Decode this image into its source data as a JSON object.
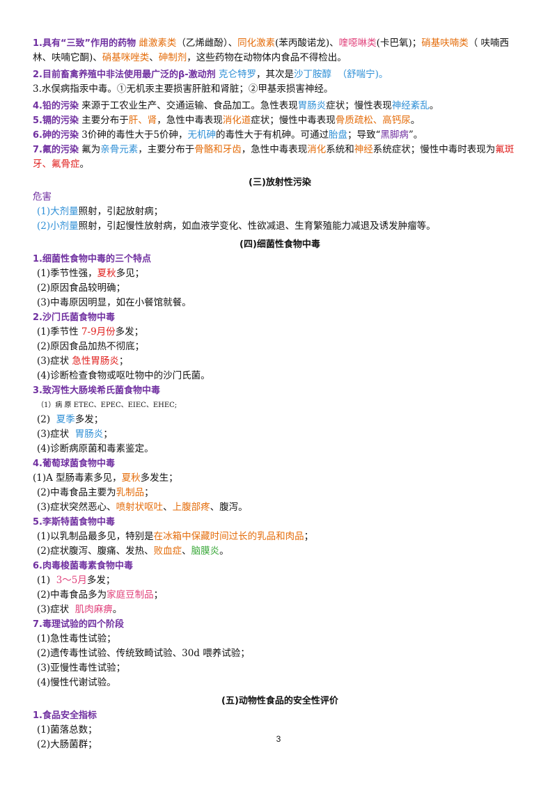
{
  "s1": {
    "p1_label": "1.具有“三致”作用的药物",
    "p1_t1": "雌激素类",
    "p1_t2": "（乙烯雌酚）、",
    "p1_t3": "同化激素",
    "p1_t4": "(苯丙酸诺龙)、",
    "p1_t5": "喹噁啉类",
    "p1_t6": "(卡巴氧)；",
    "p1_t7": "硝基呋喃类",
    "p1_t8": "（ 呋喃西林、呋喃它酮)、",
    "p1_t9": "硝基咪唑类",
    "p1_t10": "、",
    "p1_t11": "砷制剂",
    "p1_t12": "，这些药物在动物体内食品不得检出。",
    "p2_label": "2.目前畜禽养殖中非法使用最广泛的β-激动剂",
    "p2_t1": "克仑特罗",
    "p2_t2": "，其次是",
    "p2_t3": "沙丁胺醇",
    "p2_t4": "（舒喘宁)。",
    "p3": "3.水俣病指汞中毒。①无机汞主要损害肝脏和肾脏；②甲基汞损害神经。",
    "p4_label": "4.铅的污染",
    "p4_t1": "来源于工农业生产、交通运输、食品加工。急性表现",
    "p4_t2": "胃肠炎",
    "p4_t3": "症状；慢性表现",
    "p4_t4": "神经紊乱",
    "p4_t5": "。",
    "p5_label": "5.镉的污染",
    "p5_t1": "主要分布于",
    "p5_t2": "肝、肾",
    "p5_t3": "，急性中毒表现",
    "p5_t4": "消化道",
    "p5_t5": "症状；慢性中毒表现",
    "p5_t6": "骨质疏松、高钙尿",
    "p5_t7": "。",
    "p6_label": "6.砷的污染",
    "p6_t1": "3价砷的毒性大于5价砷，",
    "p6_t2": "无机砷",
    "p6_t3": "的毒性大于有机砷。可通过",
    "p6_t4": "胎盘",
    "p6_t5": "；导致“",
    "p6_t6": "黑脚病",
    "p6_t7": "”。",
    "p7_label": "7.氟的污染",
    "p7_t1": "氟为",
    "p7_t2": "亲骨元素",
    "p7_t3": "，主要分布于",
    "p7_t4": "骨骼和牙齿",
    "p7_t5": "，急性中毒表现",
    "p7_t6": "消化",
    "p7_t7": "系统和",
    "p7_t8": "神经",
    "p7_t9": "系统症状；慢性中毒时表现为",
    "p7_t10": "氟斑牙、氟骨症",
    "p7_t11": "。"
  },
  "s3": {
    "title": "(三)放射性污染",
    "hazard": "危害",
    "i1_a": "(1)大剂量",
    "i1_b": "照射，引起放射病；",
    "i2_a": "(2)小剂量",
    "i2_b": "照射，引起慢性放射病，如血液学变化、性欲减退、生育繁殖能力减退及诱发肿瘤等。"
  },
  "s4": {
    "title": "(四)细菌性食物中毒",
    "h1": "1.细菌性食物中毒的三个特点",
    "h1_i1_a": "(1)季节性强，",
    "h1_i1_b": "夏秋",
    "h1_i1_c": "多见；",
    "h1_i2": "(2)原因食品较明确；",
    "h1_i3": "(3)中毒原因明显，如在小餐馆就餐。",
    "h2": "2.沙门氏菌食物中毒",
    "h2_i1_a": "(1)季节性",
    "h2_i1_b": "7-9月份",
    "h2_i1_c": "多发；",
    "h2_i2": "(2)原因食品加热不彻底；",
    "h2_i3_a": "(3)症状",
    "h2_i3_b": "急性胃肠炎",
    "h2_i3_c": "；",
    "h2_i4": "(4)诊断检查食物或呕吐物中的沙门氏菌。",
    "h3": "3.致泻性大肠埃希氏菌食物中毒",
    "h3_i1": "（1）病 原  ETEC、EPEC、EIEC、EHEC;",
    "h3_i2_a": "(2)",
    "h3_i2_b": "夏季",
    "h3_i2_c": "多发；",
    "h3_i3_a": "(3)症状",
    "h3_i3_b": "胃肠炎",
    "h3_i3_c": "；",
    "h3_i4": "(4)诊断病原菌和毒素鉴定。",
    "h4": "4.葡萄球菌食物中毒",
    "h4_i1_a": "(1)A  型肠毒素多见，",
    "h4_i1_b": "夏秋",
    "h4_i1_c": "多发生；",
    "h4_i2_a": "(2)中毒食品主要为",
    "h4_i2_b": "乳制品",
    "h4_i2_c": "；",
    "h4_i3_a": "(3)症状突然恶心、",
    "h4_i3_b": "喷射状呕吐",
    "h4_i3_c": "、",
    "h4_i3_d": "上腹部疼",
    "h4_i3_e": "、腹泻。",
    "h5": "5.李斯特菌食物中毒",
    "h5_i1_a": "(1)以乳制品最多见，特别是",
    "h5_i1_b": "在冰箱中保藏时间过长的乳品和肉品",
    "h5_i1_c": "；",
    "h5_i2_a": "(2)症状腹泻、腹痛、发热、",
    "h5_i2_b": "败血症",
    "h5_i2_c": "、",
    "h5_i2_d": "脑膜炎",
    "h5_i2_e": "。",
    "h6": "6.肉毒梭菌毒素食物中毒",
    "h6_i1_a": "(1)",
    "h6_i1_b": "3～5月",
    "h6_i1_c": "多发；",
    "h6_i2_a": "(2)中毒食品多为",
    "h6_i2_b": "家庭豆制品",
    "h6_i2_c": "；",
    "h6_i3_a": "(3)症状",
    "h6_i3_b": "肌肉麻痹",
    "h6_i3_c": "。",
    "h7": "7.毒理试验的四个阶段",
    "h7_i1": "(1)急性毒性试验；",
    "h7_i2": "(2)遗传毒性试验、传统致畸试验、30d 喂养试验；",
    "h7_i3": "(3)亚慢性毒性试验；",
    "h7_i4": "(4)慢性代谢试验。"
  },
  "s5": {
    "title": "(五)动物性食品的安全性评价",
    "h1": "1.食品安全指标",
    "i1": "(1)菌落总数；",
    "i2": "(2)大肠菌群；"
  },
  "page_number": "3"
}
